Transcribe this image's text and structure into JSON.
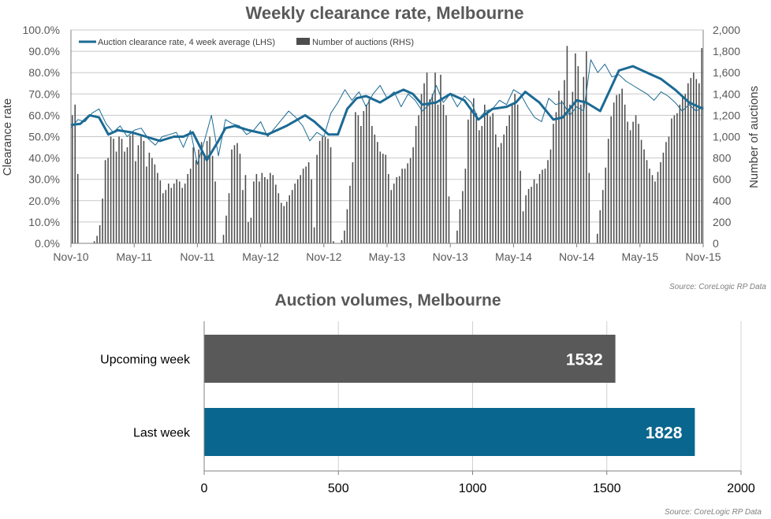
{
  "chart_data": [
    {
      "type": "bar+line",
      "title": "Weekly clearance rate, Melbourne",
      "ylabel_left": "Clearance rate",
      "ylabel_right": "Number of auctions",
      "ylim_left": [
        0,
        100
      ],
      "ylim_right": [
        0,
        2000
      ],
      "yticks_left": [
        "0.0%",
        "10.0%",
        "20.0%",
        "30.0%",
        "40.0%",
        "50.0%",
        "60.0%",
        "70.0%",
        "80.0%",
        "90.0%",
        "100.0%"
      ],
      "yticks_right": [
        "0",
        "200",
        "400",
        "600",
        "800",
        "1,000",
        "1,200",
        "1,400",
        "1,600",
        "1,800",
        "2,000"
      ],
      "xticks": [
        "Nov-10",
        "May-11",
        "Nov-11",
        "May-12",
        "Nov-12",
        "May-13",
        "Nov-13",
        "May-14",
        "Nov-14",
        "May-15",
        "Nov-15"
      ],
      "grid": true,
      "legend_position": "top-left",
      "legend": [
        "Auction clearance rate, 4 week average (LHS)",
        "Number of auctions (RHS)"
      ],
      "source": "Source: CoreLogic  RP Data",
      "series": [
        {
          "name": "Auction clearance rate, 4 week average (LHS)",
          "axis": "left",
          "kind": "line",
          "color": "#1b6a94",
          "x": [
            0,
            4,
            8,
            12,
            16,
            20,
            26,
            32,
            38,
            44,
            48,
            52,
            58,
            63,
            66,
            70,
            76,
            84,
            92,
            100,
            104,
            110,
            114,
            118,
            122,
            126,
            132,
            138,
            142,
            146,
            150,
            156,
            162,
            168,
            174,
            180,
            186,
            190,
            194,
            200,
            206,
            210,
            216,
            220,
            226,
            234,
            240,
            246,
            252,
            258,
            262,
            264,
            270
          ],
          "values": [
            55.5,
            56,
            60,
            59,
            51,
            53,
            52,
            50,
            48,
            50,
            50,
            52,
            39,
            48,
            54,
            55,
            53,
            51,
            55,
            60,
            57,
            51,
            51,
            63,
            68,
            69,
            66,
            70,
            72,
            70,
            65,
            66,
            70,
            67,
            58,
            63,
            64,
            66,
            71,
            66,
            58,
            59,
            67,
            66,
            62,
            81,
            83,
            80,
            77,
            72,
            68,
            66,
            63.0
          ]
        },
        {
          "name": "Weekly clearance rate",
          "axis": "left",
          "kind": "line",
          "color": "#1b6a94",
          "x": [
            0,
            3,
            6,
            9,
            12,
            15,
            18,
            21,
            24,
            27,
            30,
            33,
            36,
            39,
            42,
            45,
            48,
            51,
            54,
            57,
            60,
            63,
            66,
            69,
            72,
            75,
            78,
            81,
            84,
            87,
            90,
            93,
            96,
            99,
            102,
            105,
            108,
            111,
            114,
            117,
            120,
            123,
            126,
            129,
            132,
            135,
            138,
            141,
            144,
            147,
            150,
            153,
            156,
            159,
            162,
            165,
            168,
            171,
            174,
            177,
            180,
            183,
            186,
            189,
            192,
            195,
            198,
            201,
            204,
            207,
            210,
            213,
            216,
            219,
            222,
            225,
            228,
            231,
            234,
            237,
            240,
            243,
            246,
            249,
            252,
            255,
            258,
            261,
            264,
            267,
            270
          ],
          "values": [
            54,
            58,
            57,
            61,
            63,
            56,
            52,
            55,
            50,
            53,
            54,
            49,
            46,
            50,
            51,
            52,
            45,
            53,
            37,
            48,
            60,
            41,
            58,
            56,
            55,
            51,
            53,
            57,
            50,
            54,
            58,
            62,
            59,
            55,
            48,
            52,
            50,
            61,
            66,
            72,
            67,
            71,
            64,
            70,
            74,
            68,
            71,
            64,
            70,
            67,
            62,
            65,
            74,
            66,
            70,
            64,
            69,
            66,
            58,
            62,
            63,
            67,
            65,
            72,
            70,
            64,
            59,
            57,
            68,
            65,
            66,
            60,
            64,
            62,
            86,
            80,
            84,
            78,
            79,
            76,
            74,
            72,
            70,
            67,
            71,
            69,
            66,
            62,
            65,
            62,
            64
          ]
        },
        {
          "name": "Number of auctions (RHS)",
          "axis": "right",
          "kind": "bar",
          "color": "#4d4d4d",
          "values": [
            1200,
            1300,
            650,
            0,
            0,
            0,
            0,
            0,
            20,
            70,
            170,
            420,
            780,
            800,
            1000,
            980,
            860,
            1000,
            980,
            860,
            900,
            1010,
            1050,
            770,
            920,
            1000,
            960,
            720,
            850,
            800,
            740,
            660,
            590,
            470,
            500,
            560,
            520,
            560,
            600,
            580,
            520,
            560,
            650,
            700,
            900,
            780,
            880,
            950,
            820,
            960,
            1000,
            820,
            580,
            0,
            0,
            80,
            260,
            470,
            880,
            920,
            940,
            840,
            500,
            640,
            200,
            240,
            580,
            650,
            580,
            660,
            620,
            600,
            660,
            640,
            550,
            470,
            380,
            350,
            390,
            450,
            500,
            560,
            600,
            640,
            700,
            720,
            760,
            600,
            150,
            830,
            960,
            1000,
            1000,
            980,
            900,
            20,
            0,
            0,
            30,
            120,
            320,
            540,
            760,
            1230,
            1200,
            1100,
            1240,
            1300,
            1350,
            1100,
            1020,
            950,
            860,
            840,
            830,
            650,
            500,
            560,
            620,
            630,
            700,
            700,
            750,
            800,
            900,
            1100,
            1200,
            1400,
            1500,
            1600,
            1350,
            1400,
            1600,
            1300,
            1580,
            1300,
            1200,
            440,
            0,
            0,
            120,
            320,
            490,
            700,
            1160,
            1260,
            1360,
            1220,
            1060,
            1100,
            1300,
            1240,
            1190,
            1220,
            1020,
            900,
            940,
            1020,
            1100,
            1200,
            1300,
            1400,
            1300,
            680,
            300,
            450,
            510,
            530,
            600,
            560,
            650,
            690,
            700,
            780,
            880,
            1120,
            1230,
            1430,
            1340,
            1530,
            1850,
            1300,
            1420,
            1780,
            1660,
            1300,
            1560,
            1800,
            660,
            0,
            0,
            90,
            310,
            500,
            710,
            980,
            1190,
            1320,
            1390,
            1400,
            1450,
            1300,
            1140,
            1060,
            1140,
            1200,
            1120,
            970,
            880,
            780,
            700,
            640,
            580,
            670,
            760,
            850,
            950,
            1000,
            1170,
            1200,
            1220,
            1300,
            1380,
            1400,
            1500,
            1550,
            1600,
            1540,
            1500,
            1830
          ]
        }
      ]
    },
    {
      "type": "bar",
      "orientation": "horizontal",
      "title": "Auction volumes, Melbourne",
      "categories": [
        "Upcoming week",
        "Last week"
      ],
      "values": [
        1532,
        1828
      ],
      "data_labels": [
        "1532",
        "1828"
      ],
      "colors": [
        "#595959",
        "#09668e"
      ],
      "xlim": [
        0,
        2000
      ],
      "xticks": [
        "0",
        "500",
        "1000",
        "1500",
        "2000"
      ],
      "grid": true,
      "source": "Source: CoreLogic  RP Data"
    }
  ]
}
